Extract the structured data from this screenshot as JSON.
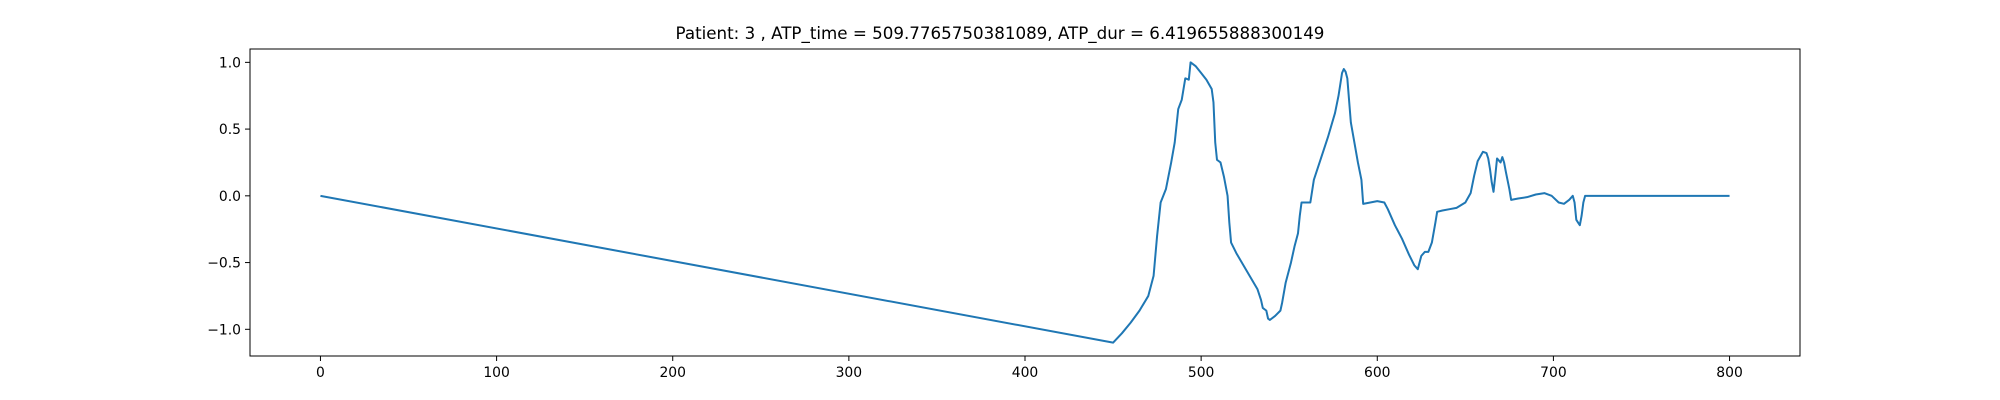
{
  "chart_data": {
    "type": "line",
    "title": "Patient: 3 , ATP_time = 509.7765750381089, ATP_dur = 6.419655888300149",
    "xlabel": "",
    "ylabel": "",
    "xlim": [
      -40,
      840
    ],
    "ylim": [
      -1.2,
      1.1
    ],
    "grid": false,
    "line_color": "#1f77b4",
    "xticks": [
      {
        "value": 0,
        "label": "0"
      },
      {
        "value": 100,
        "label": "100"
      },
      {
        "value": 200,
        "label": "200"
      },
      {
        "value": 300,
        "label": "300"
      },
      {
        "value": 400,
        "label": "400"
      },
      {
        "value": 500,
        "label": "500"
      },
      {
        "value": 600,
        "label": "600"
      },
      {
        "value": 700,
        "label": "700"
      },
      {
        "value": 800,
        "label": "800"
      }
    ],
    "yticks": [
      {
        "value": -1.0,
        "label": "−1.0"
      },
      {
        "value": -0.5,
        "label": "−0.5"
      },
      {
        "value": 0.0,
        "label": "0.0"
      },
      {
        "value": 0.5,
        "label": "0.5"
      },
      {
        "value": 1.0,
        "label": "1.0"
      }
    ],
    "series": [
      {
        "points": [
          [
            0,
            0.0
          ],
          [
            450,
            -1.1
          ],
          [
            455,
            -1.03
          ],
          [
            460,
            -0.95
          ],
          [
            465,
            -0.86
          ],
          [
            470,
            -0.75
          ],
          [
            473,
            -0.6
          ],
          [
            475,
            -0.3
          ],
          [
            477,
            -0.05
          ],
          [
            480,
            0.05
          ],
          [
            483,
            0.25
          ],
          [
            485,
            0.4
          ],
          [
            487,
            0.65
          ],
          [
            489,
            0.72
          ],
          [
            491,
            0.88
          ],
          [
            493,
            0.87
          ],
          [
            494,
            1.0
          ],
          [
            497,
            0.97
          ],
          [
            500,
            0.92
          ],
          [
            503,
            0.87
          ],
          [
            506,
            0.8
          ],
          [
            507,
            0.7
          ],
          [
            508,
            0.4
          ],
          [
            509,
            0.27
          ],
          [
            510,
            0.26
          ],
          [
            511,
            0.25
          ],
          [
            513,
            0.14
          ],
          [
            515,
            0.0
          ],
          [
            516,
            -0.2
          ],
          [
            517,
            -0.35
          ],
          [
            520,
            -0.43
          ],
          [
            524,
            -0.52
          ],
          [
            528,
            -0.61
          ],
          [
            532,
            -0.7
          ],
          [
            534,
            -0.78
          ],
          [
            535,
            -0.84
          ],
          [
            537,
            -0.86
          ],
          [
            538,
            -0.92
          ],
          [
            539,
            -0.93
          ],
          [
            542,
            -0.9
          ],
          [
            545,
            -0.86
          ],
          [
            546,
            -0.8
          ],
          [
            548,
            -0.65
          ],
          [
            551,
            -0.5
          ],
          [
            553,
            -0.38
          ],
          [
            555,
            -0.28
          ],
          [
            556,
            -0.15
          ],
          [
            557,
            -0.05
          ],
          [
            560,
            -0.05
          ],
          [
            562,
            -0.05
          ],
          [
            564,
            0.12
          ],
          [
            568,
            0.28
          ],
          [
            572,
            0.44
          ],
          [
            576,
            0.62
          ],
          [
            578,
            0.75
          ],
          [
            580,
            0.92
          ],
          [
            581,
            0.95
          ],
          [
            582,
            0.93
          ],
          [
            583,
            0.88
          ],
          [
            585,
            0.55
          ],
          [
            587,
            0.4
          ],
          [
            589,
            0.25
          ],
          [
            591,
            0.12
          ],
          [
            592,
            -0.06
          ],
          [
            596,
            -0.05
          ],
          [
            600,
            -0.04
          ],
          [
            604,
            -0.05
          ],
          [
            606,
            -0.1
          ],
          [
            610,
            -0.22
          ],
          [
            614,
            -0.32
          ],
          [
            618,
            -0.44
          ],
          [
            621,
            -0.52
          ],
          [
            623,
            -0.55
          ],
          [
            625,
            -0.45
          ],
          [
            627,
            -0.42
          ],
          [
            629,
            -0.42
          ],
          [
            631,
            -0.35
          ],
          [
            633,
            -0.2
          ],
          [
            634,
            -0.12
          ],
          [
            637,
            -0.11
          ],
          [
            641,
            -0.1
          ],
          [
            645,
            -0.09
          ],
          [
            650,
            -0.05
          ],
          [
            653,
            0.02
          ],
          [
            655,
            0.15
          ],
          [
            657,
            0.26
          ],
          [
            660,
            0.33
          ],
          [
            662,
            0.32
          ],
          [
            663,
            0.28
          ],
          [
            664,
            0.2
          ],
          [
            665,
            0.1
          ],
          [
            666,
            0.03
          ],
          [
            667,
            0.15
          ],
          [
            668,
            0.28
          ],
          [
            670,
            0.25
          ],
          [
            671,
            0.29
          ],
          [
            672,
            0.25
          ],
          [
            673,
            0.18
          ],
          [
            675,
            0.05
          ],
          [
            676,
            -0.03
          ],
          [
            680,
            -0.02
          ],
          [
            685,
            -0.01
          ],
          [
            690,
            0.01
          ],
          [
            695,
            0.02
          ],
          [
            699,
            0.0
          ],
          [
            703,
            -0.05
          ],
          [
            706,
            -0.06
          ],
          [
            709,
            -0.03
          ],
          [
            711,
            0.0
          ],
          [
            712,
            -0.05
          ],
          [
            713,
            -0.18
          ],
          [
            714,
            -0.2
          ],
          [
            715,
            -0.22
          ],
          [
            716,
            -0.15
          ],
          [
            717,
            -0.05
          ],
          [
            718,
            0.0
          ],
          [
            800,
            0.0
          ]
        ]
      }
    ]
  }
}
